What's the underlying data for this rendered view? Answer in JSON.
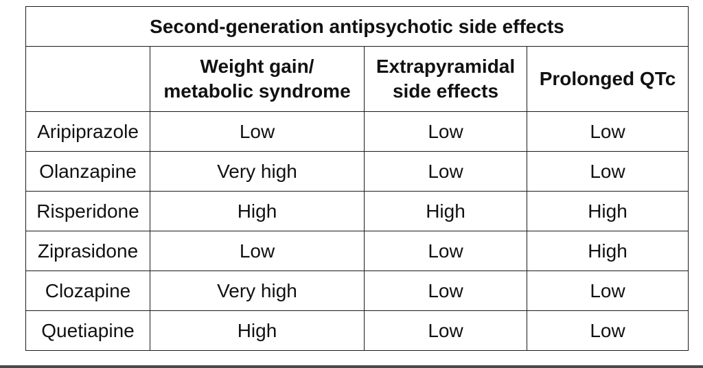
{
  "table": {
    "title": "Second-generation antipsychotic side effects",
    "corner": "",
    "columns": [
      [
        "Weight gain/",
        "metabolic syndrome"
      ],
      [
        "Extrapyramidal",
        "side effects"
      ],
      [
        "Prolonged QTc"
      ]
    ],
    "rows": [
      {
        "drug": "Aripiprazole",
        "values": [
          "Low",
          "Low",
          "Low"
        ]
      },
      {
        "drug": "Olanzapine",
        "values": [
          "Very high",
          "Low",
          "Low"
        ]
      },
      {
        "drug": "Risperidone",
        "values": [
          "High",
          "High",
          "High"
        ]
      },
      {
        "drug": "Ziprasidone",
        "values": [
          "Low",
          "Low",
          "High"
        ]
      },
      {
        "drug": "Clozapine",
        "values": [
          "Very high",
          "Low",
          "Low"
        ]
      },
      {
        "drug": "Quetiapine",
        "values": [
          "High",
          "Low",
          "Low"
        ]
      }
    ]
  }
}
